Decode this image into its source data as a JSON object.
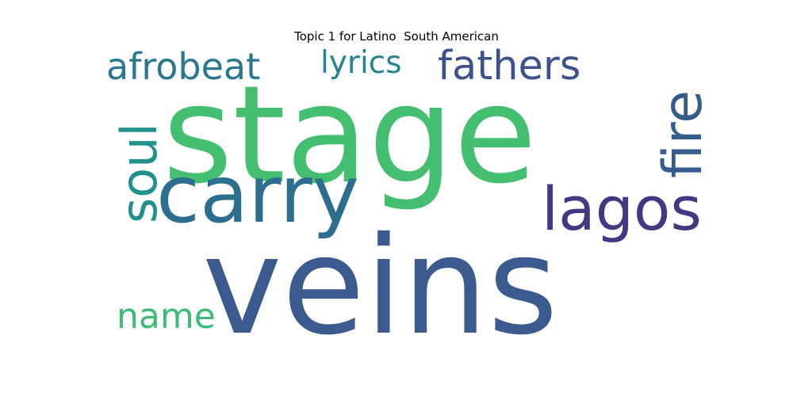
{
  "title": "Topic 1 for Latino  South American",
  "words": [
    {
      "text": "stage",
      "color": "#44bf70",
      "orientation": "horizontal"
    },
    {
      "text": "veins",
      "color": "#3b5a8d",
      "orientation": "horizontal"
    },
    {
      "text": "carry",
      "color": "#2c6e8e",
      "orientation": "horizontal"
    },
    {
      "text": "lagos",
      "color": "#453781",
      "orientation": "horizontal"
    },
    {
      "text": "fire",
      "color": "#365c8d",
      "orientation": "vertical"
    },
    {
      "text": "soul",
      "color": "#21918c",
      "orientation": "vertical"
    },
    {
      "text": "fathers",
      "color": "#3b528b",
      "orientation": "horizontal"
    },
    {
      "text": "afrobeat",
      "color": "#2a788e",
      "orientation": "horizontal"
    },
    {
      "text": "lyrics",
      "color": "#25858e",
      "orientation": "horizontal"
    },
    {
      "text": "name",
      "color": "#3bbb75",
      "orientation": "horizontal"
    }
  ]
}
